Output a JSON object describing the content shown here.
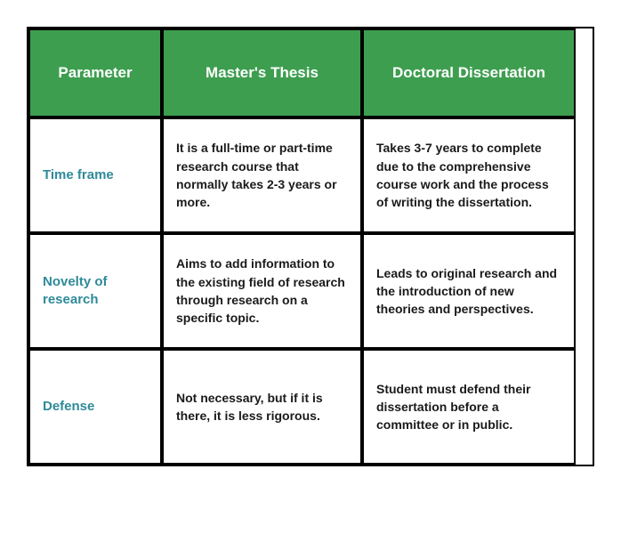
{
  "table": {
    "type": "table",
    "header_bg": "#3d9e4f",
    "header_fg": "#ffffff",
    "param_fg": "#2f8a99",
    "body_fg": "#1a1a1a",
    "border_color": "#000000",
    "header_fontsize": 17,
    "param_fontsize": 15,
    "body_fontsize": 14,
    "columns": [
      "Parameter",
      "Master's Thesis",
      "Doctoral Dissertation"
    ],
    "rows": [
      {
        "param": "Time frame",
        "masters": "It is a full-time or part-time research course that normally takes 2-3 years or more.",
        "doctoral": "Takes 3-7 years to complete due to the comprehensive course work and the process of writing the dissertation."
      },
      {
        "param": "Novelty of research",
        "masters": "Aims to add information to the existing field of research through research on a specific topic.",
        "doctoral": "Leads to original research and the introduction of new theories and perspectives."
      },
      {
        "param": "Defense",
        "masters": "Not necessary, but if it is there, it is less rigorous.",
        "doctoral": "Student must defend their dissertation before a committee or in public."
      }
    ]
  }
}
